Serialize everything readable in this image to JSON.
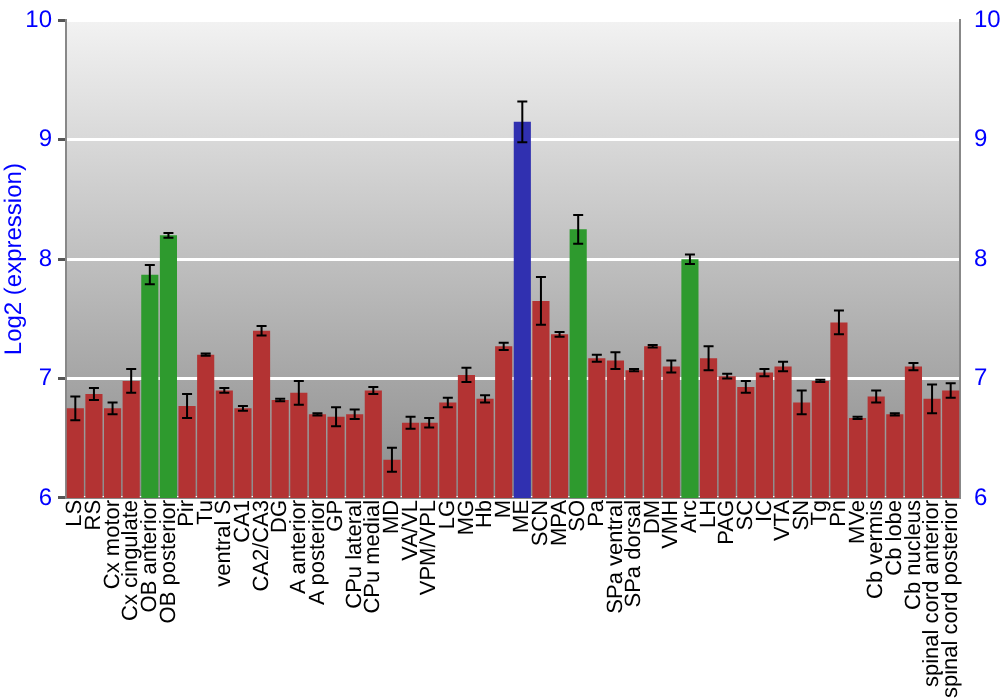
{
  "chart_data": {
    "type": "bar",
    "ylabel": "Log2 (expression)",
    "categories": [
      "LS",
      "RS",
      "Cx motor",
      "Cx cingulate",
      "OB anterior",
      "OB posterior",
      "Pir",
      "Tu",
      "ventral S",
      "CA1",
      "CA2/CA3",
      "DG",
      "A anterior",
      "A posterior",
      "GP",
      "CPu lateral",
      "CPu medial",
      "MD",
      "VA/VL",
      "VPM/VPL",
      "LG",
      "MG",
      "Hb",
      "M",
      "ME",
      "SCN",
      "MPA",
      "SO",
      "Pa",
      "SPa ventral",
      "SPa dorsal",
      "DM",
      "VMH",
      "Arc",
      "LH",
      "PAG",
      "SC",
      "IC",
      "VTA",
      "SN",
      "Tg",
      "Pn",
      "MVe",
      "Cb vermis",
      "Cb lobe",
      "Cb nucleus",
      "spinal cord anterior",
      "spinal cord posterior"
    ],
    "values": [
      6.75,
      6.87,
      6.75,
      6.98,
      7.87,
      8.2,
      6.77,
      7.2,
      6.9,
      6.75,
      7.4,
      6.82,
      6.88,
      6.7,
      6.68,
      6.7,
      6.9,
      6.32,
      6.63,
      6.63,
      6.8,
      7.03,
      6.83,
      7.27,
      9.15,
      7.65,
      7.37,
      8.25,
      7.17,
      7.15,
      7.07,
      7.27,
      7.1,
      8.0,
      7.17,
      7.02,
      6.93,
      7.05,
      7.1,
      6.8,
      6.98,
      7.47,
      6.67,
      6.85,
      6.7,
      7.1,
      6.83,
      6.9
    ],
    "errors": [
      0.1,
      0.05,
      0.05,
      0.1,
      0.08,
      0.02,
      0.1,
      0.01,
      0.02,
      0.02,
      0.04,
      0.01,
      0.1,
      0.01,
      0.08,
      0.04,
      0.03,
      0.1,
      0.05,
      0.04,
      0.04,
      0.06,
      0.03,
      0.03,
      0.17,
      0.2,
      0.02,
      0.12,
      0.03,
      0.07,
      0.01,
      0.01,
      0.05,
      0.04,
      0.1,
      0.02,
      0.05,
      0.03,
      0.04,
      0.1,
      0.01,
      0.1,
      0.01,
      0.05,
      0.01,
      0.03,
      0.12,
      0.06
    ],
    "colors": [
      "#b33333",
      "#b33333",
      "#b33333",
      "#b33333",
      "#2e9a2e",
      "#2e9a2e",
      "#b33333",
      "#b33333",
      "#b33333",
      "#b33333",
      "#b33333",
      "#b33333",
      "#b33333",
      "#b33333",
      "#b33333",
      "#b33333",
      "#b33333",
      "#b33333",
      "#b33333",
      "#b33333",
      "#b33333",
      "#b33333",
      "#b33333",
      "#b33333",
      "#3030b0",
      "#b33333",
      "#b33333",
      "#2e9a2e",
      "#b33333",
      "#b33333",
      "#b33333",
      "#b33333",
      "#b33333",
      "#2e9a2e",
      "#b33333",
      "#b33333",
      "#b33333",
      "#b33333",
      "#b33333",
      "#b33333",
      "#b33333",
      "#b33333",
      "#b33333",
      "#b33333",
      "#b33333",
      "#b33333",
      "#b33333",
      "#b33333"
    ],
    "ylim": [
      6,
      10
    ],
    "yticks": [
      6,
      7,
      8,
      9,
      10
    ],
    "y2lim": [
      6,
      10
    ],
    "y2ticks": [
      6,
      7,
      8,
      9,
      10
    ],
    "grid": "y",
    "legend": false
  }
}
